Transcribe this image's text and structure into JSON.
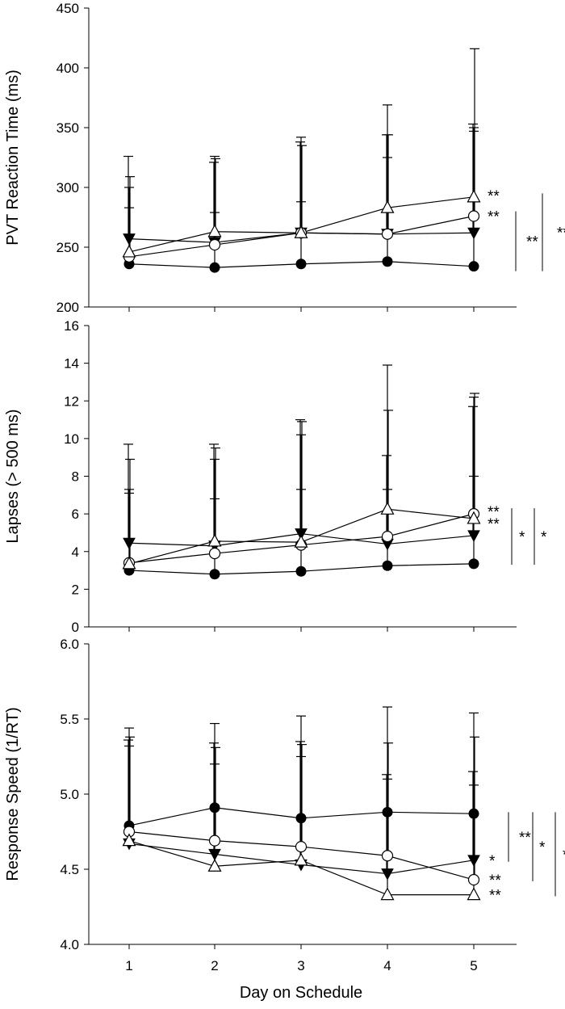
{
  "chart_data": [
    {
      "type": "line",
      "panel": "top",
      "ylabel": "PVT Reaction Time (ms)",
      "ylim": [
        200,
        450
      ],
      "yticks": [
        200,
        250,
        300,
        350,
        400,
        450
      ],
      "x": [
        1,
        2,
        3,
        4,
        5
      ],
      "series": [
        {
          "name": "filled circle",
          "marker": "circle-filled",
          "values": [
            236,
            233,
            236,
            238,
            234
          ],
          "err_upper": [
            300,
            279,
            288,
            325,
            347
          ]
        },
        {
          "name": "filled triangle down",
          "marker": "triangle-down-filled",
          "values": [
            257,
            254,
            262,
            261,
            262
          ],
          "err_upper": [
            326,
            321,
            338,
            344,
            353
          ]
        },
        {
          "name": "open circle",
          "marker": "circle-open",
          "values": [
            242,
            252,
            262,
            261,
            276
          ],
          "err_upper": [
            309,
            324,
            335,
            344,
            416
          ]
        },
        {
          "name": "open triangle",
          "marker": "triangle-open",
          "values": [
            246,
            263,
            262,
            283,
            292
          ],
          "err_upper": [
            283,
            326,
            342,
            369,
            350
          ]
        }
      ],
      "annotations": [
        {
          "series": "open triangle",
          "text": "**"
        },
        {
          "series": "open circle",
          "text": "**"
        }
      ],
      "brackets": [
        {
          "from": 230,
          "to": 280,
          "text": "**"
        },
        {
          "from": 230,
          "to": 295,
          "text": "**"
        }
      ]
    },
    {
      "type": "line",
      "panel": "middle",
      "ylabel": "Lapses (> 500 ms)",
      "ylim": [
        0,
        16
      ],
      "yticks": [
        0,
        2,
        4,
        6,
        8,
        10,
        12,
        14,
        16
      ],
      "x": [
        1,
        2,
        3,
        4,
        5
      ],
      "series": [
        {
          "name": "filled circle",
          "marker": "circle-filled",
          "values": [
            3.0,
            2.8,
            2.95,
            3.25,
            3.35
          ],
          "err_upper": [
            7.1,
            6.8,
            7.3,
            7.3,
            8.0
          ]
        },
        {
          "name": "filled triangle down",
          "marker": "triangle-down-filled",
          "values": [
            4.45,
            4.3,
            4.95,
            4.4,
            4.85
          ],
          "err_upper": [
            9.7,
            9.7,
            11.0,
            9.1,
            11.7
          ]
        },
        {
          "name": "open circle",
          "marker": "circle-open",
          "values": [
            3.4,
            3.9,
            4.35,
            4.8,
            6.0
          ],
          "err_upper": [
            8.9,
            9.5,
            10.9,
            11.5,
            12.4
          ]
        },
        {
          "name": "open triangle",
          "marker": "triangle-open",
          "values": [
            3.35,
            4.55,
            4.5,
            6.25,
            5.75
          ],
          "err_upper": [
            7.3,
            8.9,
            10.2,
            13.9,
            12.2
          ]
        }
      ],
      "annotations": [
        {
          "series": "open circle",
          "text": "**"
        },
        {
          "series": "open triangle",
          "text": "**"
        }
      ],
      "brackets": [
        {
          "from": 3.3,
          "to": 6.3,
          "text": "*"
        },
        {
          "from": 3.3,
          "to": 6.3,
          "text": "*"
        }
      ]
    },
    {
      "type": "line",
      "panel": "bottom",
      "xlabel": "Day on Schedule",
      "ylabel": "Response Speed (1/RT)",
      "ylim": [
        4.0,
        6.0
      ],
      "yticks": [
        "4.0",
        "4.5",
        "5.0",
        "5.5",
        "6.0"
      ],
      "x": [
        1,
        2,
        3,
        4,
        5
      ],
      "xticks": [
        "1",
        "2",
        "3",
        "4",
        "5"
      ],
      "series": [
        {
          "name": "filled circle",
          "marker": "circle-filled",
          "values": [
            4.79,
            4.91,
            4.84,
            4.88,
            4.87
          ],
          "err_upper": [
            5.44,
            5.47,
            5.52,
            5.58,
            5.54
          ]
        },
        {
          "name": "filled triangle down",
          "marker": "triangle-down-filled",
          "values": [
            4.67,
            4.6,
            4.53,
            4.47,
            4.56
          ],
          "err_upper": [
            5.36,
            5.34,
            5.35,
            5.13,
            5.15
          ]
        },
        {
          "name": "open circle",
          "marker": "circle-open",
          "values": [
            4.75,
            4.69,
            4.65,
            4.59,
            4.43
          ],
          "err_upper": [
            5.38,
            5.31,
            5.33,
            5.34,
            5.38
          ]
        },
        {
          "name": "open triangle",
          "marker": "triangle-open",
          "values": [
            4.69,
            4.52,
            4.56,
            4.33,
            4.33
          ],
          "err_upper": [
            5.32,
            5.2,
            5.25,
            5.1,
            5.06
          ]
        }
      ],
      "annotations": [
        {
          "series": "filled triangle down",
          "text": "*"
        },
        {
          "series": "open circle",
          "text": "**"
        },
        {
          "series": "open triangle",
          "text": "**"
        }
      ],
      "brackets": [
        {
          "from": 4.55,
          "to": 4.88,
          "text": "**"
        },
        {
          "from": 4.42,
          "to": 4.88,
          "text": "*"
        },
        {
          "from": 4.32,
          "to": 4.88,
          "text": "*"
        }
      ]
    }
  ]
}
